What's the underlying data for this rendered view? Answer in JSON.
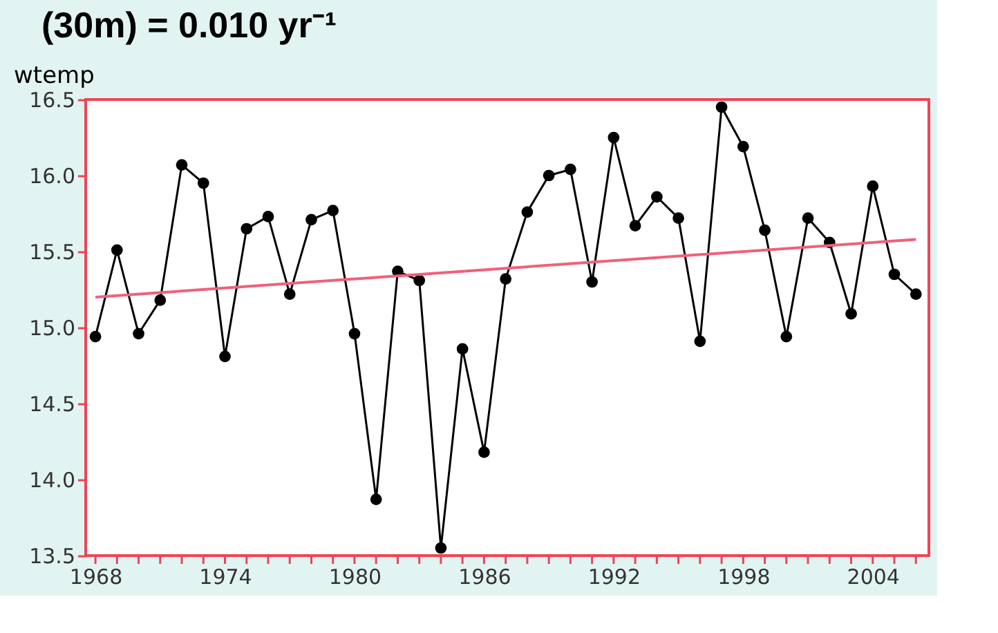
{
  "chart_data": {
    "type": "line",
    "title": "(30m) = 0.010 yr⁻¹",
    "ylabel": "wtemp",
    "xlim": [
      1967.55,
      2006.6
    ],
    "ylim": [
      13.5,
      16.5
    ],
    "xticks": [
      1968,
      {
        "value": 1969,
        "label": null
      },
      {
        "value": 1970,
        "label": null
      },
      {
        "value": 1971,
        "label": null
      },
      {
        "value": 1972,
        "label": null
      },
      {
        "value": 1973,
        "label": null
      },
      1974,
      {
        "value": 1975,
        "label": null
      },
      {
        "value": 1976,
        "label": null
      },
      {
        "value": 1977,
        "label": null
      },
      {
        "value": 1978,
        "label": null
      },
      {
        "value": 1979,
        "label": null
      },
      1980,
      {
        "value": 1981,
        "label": null
      },
      {
        "value": 1982,
        "label": null
      },
      {
        "value": 1983,
        "label": null
      },
      {
        "value": 1984,
        "label": null
      },
      {
        "value": 1985,
        "label": null
      },
      1986,
      {
        "value": 1987,
        "label": null
      },
      {
        "value": 1988,
        "label": null
      },
      {
        "value": 1989,
        "label": null
      },
      {
        "value": 1990,
        "label": null
      },
      {
        "value": 1991,
        "label": null
      },
      1992,
      {
        "value": 1993,
        "label": null
      },
      {
        "value": 1994,
        "label": null
      },
      {
        "value": 1995,
        "label": null
      },
      {
        "value": 1996,
        "label": null
      },
      {
        "value": 1997,
        "label": null
      },
      1998,
      {
        "value": 1999,
        "label": null
      },
      {
        "value": 2000,
        "label": null
      },
      {
        "value": 2001,
        "label": null
      },
      {
        "value": 2002,
        "label": null
      },
      {
        "value": 2003,
        "label": null
      },
      2004,
      {
        "value": 2005,
        "label": null
      },
      {
        "value": 2006,
        "label": null
      }
    ],
    "yticks": [
      13.5,
      {
        "value": 14,
        "label": "14.0"
      },
      14.5,
      {
        "value": 15,
        "label": "15.0"
      },
      15.5,
      {
        "value": 16,
        "label": "16.0"
      },
      16.5
    ],
    "grid": false,
    "series": [
      {
        "color": "#000000",
        "marker": "circle",
        "line_style": "solid",
        "x": [
          1968,
          1969,
          1970,
          1971,
          1972,
          1973,
          1974,
          1975,
          1976,
          1977,
          1978,
          1979,
          1980,
          1981,
          1982,
          1983,
          1984,
          1985,
          1986,
          1987,
          1988,
          1989,
          1990,
          1991,
          1992,
          1993,
          1994,
          1995,
          1996,
          1997,
          1998,
          1999,
          2000,
          2001,
          2002,
          2003,
          2004,
          2005,
          2006
        ],
        "values": [
          14.94,
          15.51,
          14.96,
          15.18,
          16.07,
          15.95,
          14.81,
          15.65,
          15.73,
          15.22,
          15.71,
          15.77,
          14.96,
          13.87,
          15.37,
          15.31,
          13.55,
          14.86,
          14.18,
          15.32,
          15.76,
          16.0,
          16.04,
          15.3,
          16.25,
          15.67,
          15.86,
          15.72,
          14.91,
          16.45,
          16.19,
          15.64,
          14.94,
          15.72,
          15.56,
          15.09,
          15.93,
          15.35,
          15.22
        ]
      },
      {
        "color": "#f0607a",
        "marker": "none",
        "line_style": "solid",
        "x": [
          1968,
          2006
        ],
        "values": [
          15.2,
          15.58
        ]
      }
    ]
  }
}
